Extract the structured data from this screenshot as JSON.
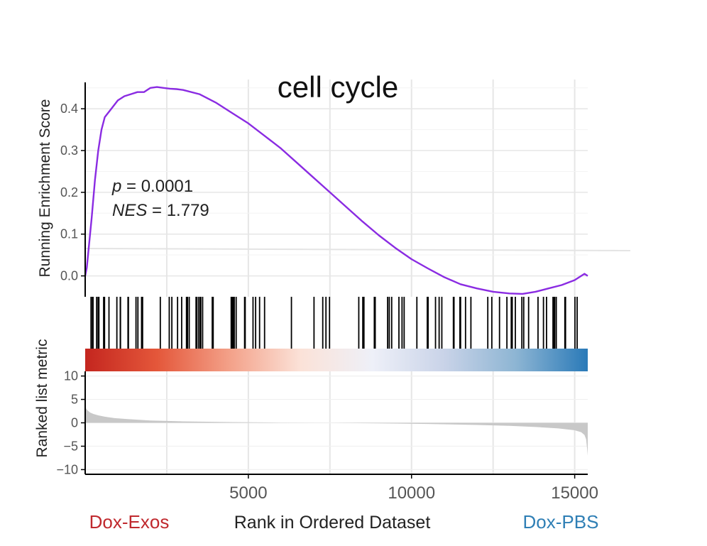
{
  "chart_data": {
    "type": "line",
    "title": "cell cycle",
    "colors": {
      "curve": "#8a2be2",
      "grid": "#e6e6e6",
      "hits": "#000000",
      "ranked_fill": "#c8c8c8",
      "left_group": "#c0292e",
      "right_group": "#2f7fb5",
      "gradient_stops": [
        "#c4261f",
        "#e4573a",
        "#f3a088",
        "#fbe2d8",
        "#eef0f8",
        "#c9d3e8",
        "#8db5d3",
        "#2a7ab8"
      ]
    },
    "annotation": {
      "p_label": "p",
      "p_rest": " = 0.0001",
      "nes_label": "NES",
      "nes_rest": " = 1.779"
    },
    "x": {
      "label": "Rank in Ordered Dataset",
      "range": [
        0,
        15400
      ],
      "ticks": [
        5000,
        10000,
        15000
      ],
      "tick_labels": [
        "5000",
        "10000",
        "15000"
      ]
    },
    "groups": {
      "left": "Dox-Exos",
      "right": "Dox-PBS"
    },
    "es_panel": {
      "ylabel": "Running Enrichment Score",
      "ylim": [
        -0.05,
        0.47
      ],
      "ticks": [
        0.0,
        0.1,
        0.2,
        0.3,
        0.4
      ],
      "tick_labels": [
        "0.0",
        "0.1",
        "0.2",
        "0.3",
        "0.4"
      ],
      "series": [
        {
          "name": "Running Enrichment Score",
          "x": [
            0,
            50,
            100,
            200,
            300,
            400,
            500,
            600,
            700,
            800,
            1000,
            1200,
            1400,
            1600,
            1800,
            2000,
            2200,
            2400,
            2600,
            2800,
            3000,
            3500,
            4000,
            4500,
            5000,
            5500,
            6000,
            6500,
            7000,
            7500,
            8000,
            8500,
            9000,
            9500,
            10000,
            10500,
            11000,
            11500,
            12000,
            12500,
            13000,
            13400,
            13800,
            14200,
            14600,
            15000,
            15300,
            15400
          ],
          "y": [
            0.0,
            0.02,
            0.06,
            0.14,
            0.23,
            0.3,
            0.35,
            0.38,
            0.39,
            0.4,
            0.42,
            0.43,
            0.435,
            0.44,
            0.44,
            0.45,
            0.452,
            0.45,
            0.448,
            0.447,
            0.445,
            0.435,
            0.415,
            0.39,
            0.365,
            0.335,
            0.305,
            0.27,
            0.235,
            0.2,
            0.165,
            0.13,
            0.097,
            0.067,
            0.04,
            0.018,
            -0.003,
            -0.02,
            -0.03,
            -0.038,
            -0.042,
            -0.043,
            -0.038,
            -0.03,
            -0.022,
            -0.01,
            0.005,
            0.0
          ]
        }
      ]
    },
    "ranked_panel": {
      "ylabel": "Ranked list metric",
      "ylim": [
        -11,
        11
      ],
      "ticks": [
        10,
        5,
        0,
        -5,
        -10
      ],
      "tick_labels": [
        "10",
        "5",
        "0",
        "−5",
        "−10"
      ],
      "series": [
        {
          "name": "Ranked list metric",
          "x": [
            0,
            30,
            80,
            150,
            250,
            400,
            600,
            900,
            1300,
            2000,
            3000,
            4500,
            6000,
            7500,
            9000,
            10500,
            12000,
            13000,
            13800,
            14500,
            15000,
            15200,
            15300,
            15350,
            15380,
            15400
          ],
          "y": [
            4.0,
            3.0,
            2.6,
            2.2,
            1.9,
            1.6,
            1.3,
            1.0,
            0.8,
            0.5,
            0.3,
            0.15,
            0.05,
            0.0,
            -0.1,
            -0.25,
            -0.45,
            -0.65,
            -0.9,
            -1.2,
            -1.6,
            -2.0,
            -2.6,
            -3.5,
            -5.5,
            -7.0
          ]
        }
      ]
    }
  }
}
